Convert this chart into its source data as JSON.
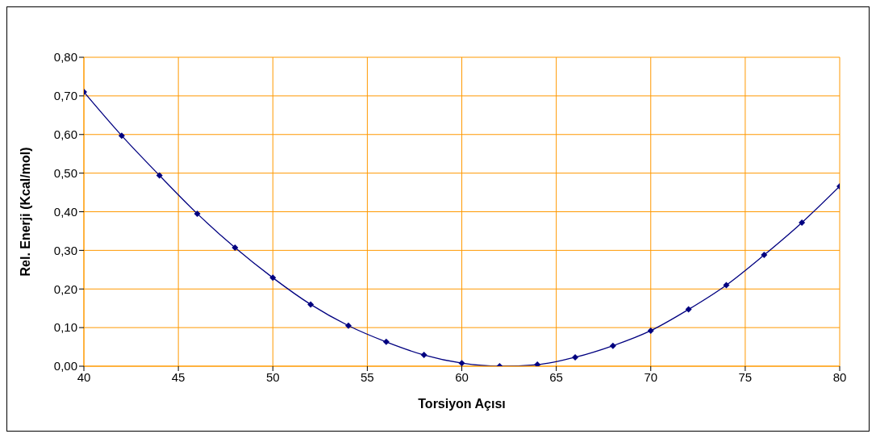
{
  "chart_data": {
    "type": "line",
    "xlabel": "Torsiyon Açısı",
    "ylabel": "Rel. Enerji (Kcal/mol)",
    "x": [
      40,
      42,
      44,
      46,
      48,
      50,
      52,
      54,
      56,
      58,
      60,
      62,
      64,
      66,
      68,
      70,
      72,
      74,
      76,
      78,
      80
    ],
    "series": [
      {
        "color": "#000080",
        "values": [
          0.71,
          0.597,
          0.494,
          0.395,
          0.307,
          0.229,
          0.16,
          0.105,
          0.063,
          0.029,
          0.008,
          0,
          0.004,
          0.023,
          0.053,
          0.092,
          0.147,
          0.21,
          0.288,
          0.372,
          0.466
        ]
      }
    ],
    "xlim": [
      40,
      80
    ],
    "xticks": [
      40,
      45,
      50,
      55,
      60,
      65,
      70,
      75,
      80
    ],
    "ylim": [
      0,
      0.8
    ],
    "yticks": [
      {
        "value": 0,
        "label": "0,00"
      },
      {
        "value": 0.1,
        "label": "0,10"
      },
      {
        "value": 0.2,
        "label": "0,20"
      },
      {
        "value": 0.3,
        "label": "0,30"
      },
      {
        "value": 0.4,
        "label": "0,40"
      },
      {
        "value": 0.5,
        "label": "0,50"
      },
      {
        "value": 0.6,
        "label": "0,60"
      },
      {
        "value": 0.7,
        "label": "0,70"
      },
      {
        "value": 0.8,
        "label": "0,80"
      }
    ],
    "grid": true,
    "legend": false,
    "marker": "diamond",
    "line_style": "solid"
  }
}
